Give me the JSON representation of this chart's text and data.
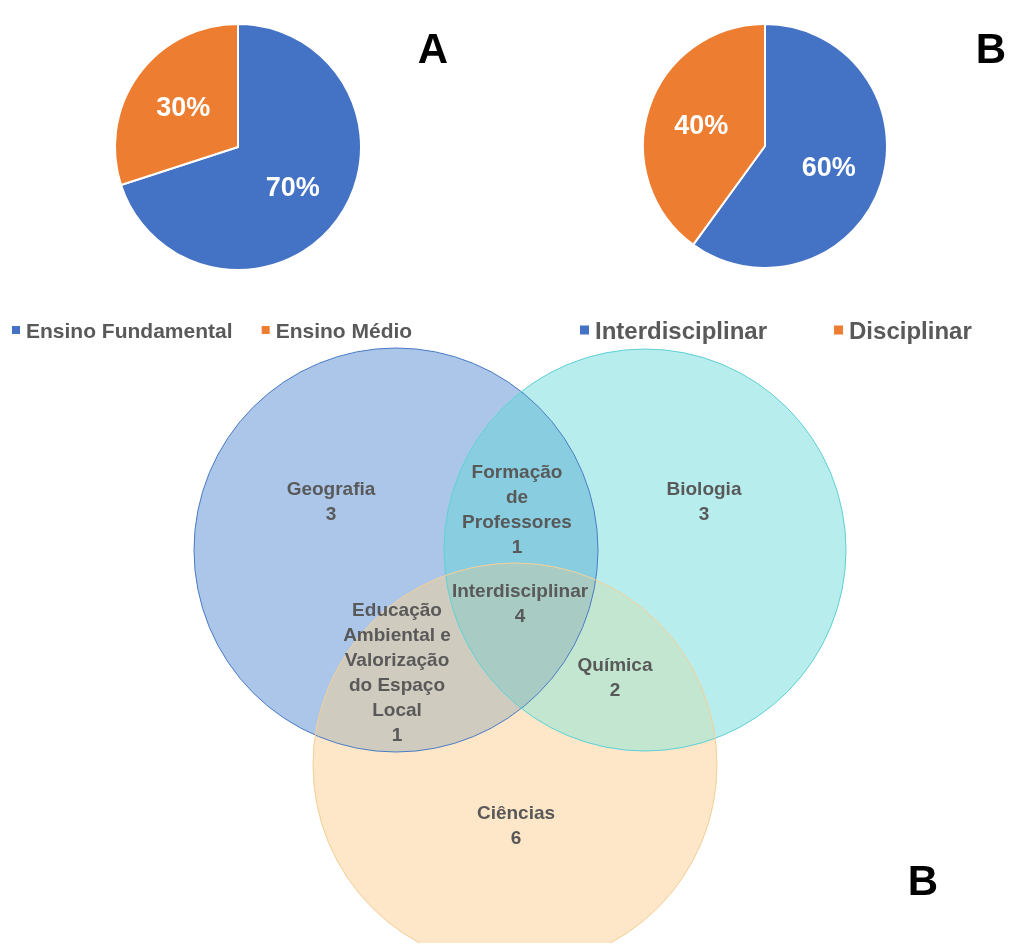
{
  "chart_data": [
    {
      "type": "pie",
      "title": "A",
      "categories": [
        "Ensino Fundamental",
        "Ensino Médio"
      ],
      "values": [
        70,
        30
      ],
      "colors": [
        "#4472c4",
        "#ed7d31"
      ],
      "value_labels": [
        "70%",
        "30%"
      ],
      "legend": "bottom"
    },
    {
      "type": "pie",
      "title": "B",
      "categories": [
        "Interdisciplinar",
        "Disciplinar"
      ],
      "values": [
        60,
        40
      ],
      "colors": [
        "#4472c4",
        "#ed7d31"
      ],
      "value_labels": [
        "60%",
        "40%"
      ],
      "legend": "bottom"
    },
    {
      "type": "other",
      "title": "B",
      "categories": [
        "Geografia",
        "Biologia",
        "Ciências",
        "Formação de Professores",
        "Química",
        "Educação Ambiental e Valorização do Espaço Local",
        "Interdisciplinar"
      ],
      "values": [
        3,
        3,
        6,
        1,
        2,
        1,
        4
      ],
      "colors": [
        "#abc6e9",
        "#b8eded",
        "#fde7c8",
        "#88cde0",
        "#c3e6d0",
        "#d0cbbf",
        "#a8ccc4"
      ],
      "data_labels": true
    }
  ]
}
